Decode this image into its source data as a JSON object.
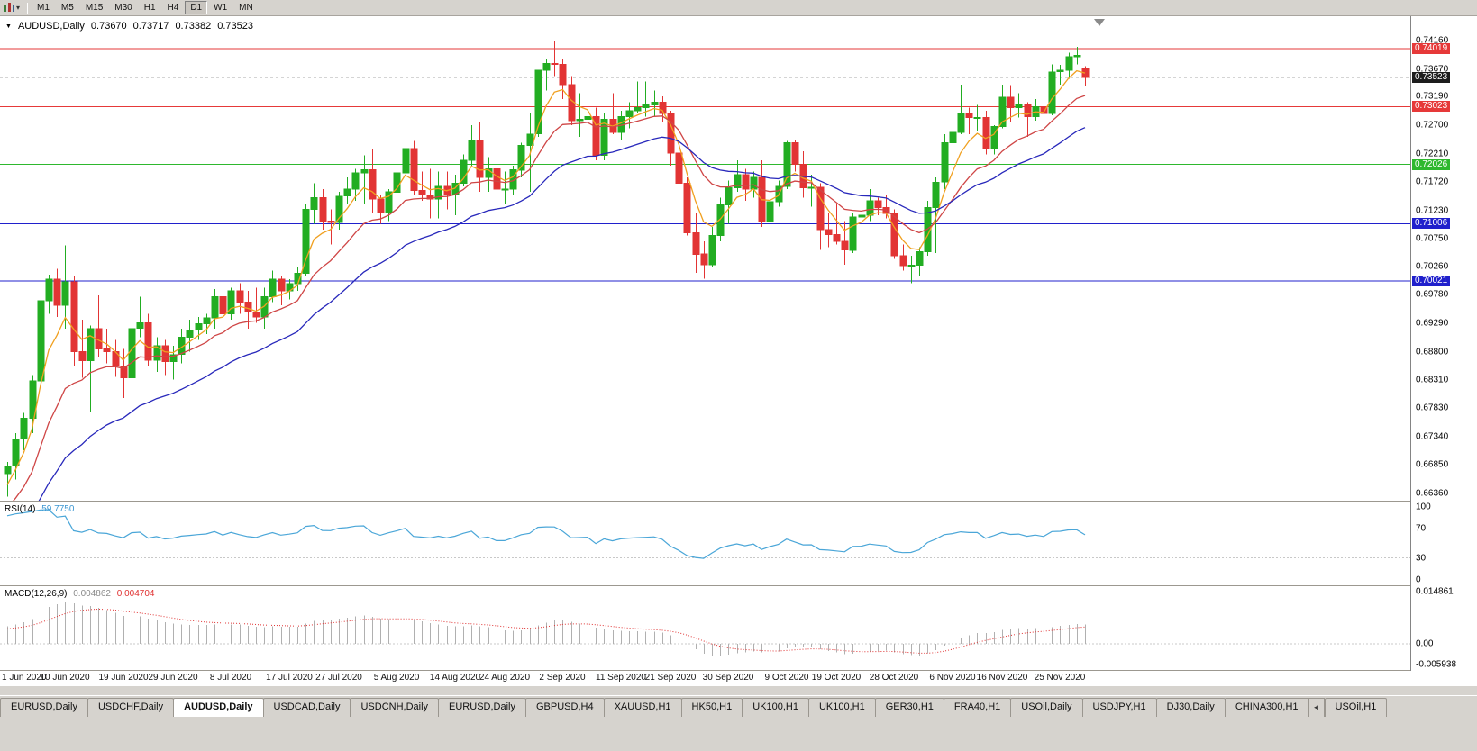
{
  "colors": {
    "window_bg": "#d6d3ce",
    "chart_bg": "#ffffff",
    "up": "#22ad22",
    "down": "#e23434",
    "ma_fast": "#f0a020",
    "ma_mid": "#cf4646",
    "ma_slow": "#2828bb",
    "rsi": "#4aa6d8",
    "macd_hist": "#b0b0b0",
    "macd_signal": "#e03232",
    "line_red": "#e63939",
    "line_green": "#2eb82e",
    "line_blue": "#2020cc",
    "current_tag_bg": "#1d1d1d",
    "current_line": "#aaaaaa"
  },
  "toolbar": {
    "caret": "▾",
    "timeframes": [
      "M1",
      "M5",
      "M15",
      "M30",
      "H1",
      "H4",
      "D1",
      "W1",
      "MN"
    ],
    "active": "D1"
  },
  "chart_header": {
    "menu_marker": "▼",
    "symbol": "AUDUSD,Daily",
    "open": "0.73670",
    "high": "0.73717",
    "low": "0.73382",
    "close": "0.73523"
  },
  "chart_data": {
    "type": "candlestick",
    "symbol": "AUDUSD",
    "timeframe": "Daily",
    "price_range": {
      "top": 0.74578,
      "bottom": 0.66234
    },
    "axis_labels": [
      "0.74160",
      "0.73670",
      "0.73190",
      "0.72700",
      "0.72210",
      "0.71720",
      "0.71230",
      "0.70750",
      "0.70260",
      "0.69780",
      "0.69290",
      "0.68800",
      "0.68310",
      "0.67830",
      "0.67340",
      "0.66850",
      "0.66360"
    ],
    "hlines": [
      {
        "price": 0.74019,
        "label": "0.74019",
        "color": "red"
      },
      {
        "price": 0.73023,
        "label": "0.73023",
        "color": "red"
      },
      {
        "price": 0.72026,
        "label": "0.72026",
        "color": "green"
      },
      {
        "price": 0.71006,
        "label": "0.71006",
        "color": "blue"
      },
      {
        "price": 0.70021,
        "label": "0.70021",
        "color": "blue"
      }
    ],
    "current_price": {
      "price": 0.73523,
      "label": "0.73523"
    },
    "date_ticks": [
      {
        "label": "1 Jun 2020",
        "index": 0
      },
      {
        "label": "10 Jun 2020",
        "index": 7
      },
      {
        "label": "19 Jun 2020",
        "index": 14
      },
      {
        "label": "29 Jun 2020",
        "index": 20
      },
      {
        "label": "8 Jul 2020",
        "index": 27
      },
      {
        "label": "17 Jul 2020",
        "index": 34
      },
      {
        "label": "27 Jul 2020",
        "index": 40
      },
      {
        "label": "5 Aug 2020",
        "index": 47
      },
      {
        "label": "14 Aug 2020",
        "index": 54
      },
      {
        "label": "24 Aug 2020",
        "index": 60
      },
      {
        "label": "2 Sep 2020",
        "index": 67
      },
      {
        "label": "11 Sep 2020",
        "index": 74
      },
      {
        "label": "21 Sep 2020",
        "index": 80
      },
      {
        "label": "30 Sep 2020",
        "index": 87
      },
      {
        "label": "9 Oct 2020",
        "index": 94
      },
      {
        "label": "19 Oct 2020",
        "index": 100
      },
      {
        "label": "28 Oct 2020",
        "index": 107
      },
      {
        "label": "6 Nov 2020",
        "index": 114
      },
      {
        "label": "16 Nov 2020",
        "index": 120
      },
      {
        "label": "25 Nov 2020",
        "index": 127
      }
    ],
    "warmup_closes": [
      0.64,
      0.6412,
      0.6404,
      0.642,
      0.6435,
      0.6428,
      0.6445,
      0.6458,
      0.645,
      0.6468,
      0.648,
      0.6472,
      0.649,
      0.6502,
      0.6495,
      0.6512,
      0.652,
      0.6515,
      0.653,
      0.6542,
      0.6535,
      0.6552,
      0.656,
      0.6555,
      0.657,
      0.6582,
      0.6575,
      0.6592,
      0.66,
      0.6595,
      0.6612,
      0.663,
      0.6648,
      0.6662
    ],
    "candles": [
      [
        0.667,
        0.669,
        0.663,
        0.6683
      ],
      [
        0.6683,
        0.674,
        0.666,
        0.673
      ],
      [
        0.673,
        0.6775,
        0.671,
        0.6765
      ],
      [
        0.6765,
        0.684,
        0.674,
        0.683
      ],
      [
        0.683,
        0.699,
        0.68,
        0.6968
      ],
      [
        0.6968,
        0.7013,
        0.6945,
        0.7005
      ],
      [
        0.7005,
        0.7023,
        0.694,
        0.696
      ],
      [
        0.696,
        0.7063,
        0.692,
        0.7
      ],
      [
        0.7,
        0.701,
        0.6855,
        0.688
      ],
      [
        0.688,
        0.6935,
        0.6835,
        0.6865
      ],
      [
        0.6865,
        0.6925,
        0.6776,
        0.692
      ],
      [
        0.692,
        0.6977,
        0.687,
        0.6885
      ],
      [
        0.6885,
        0.692,
        0.686,
        0.688
      ],
      [
        0.688,
        0.69,
        0.6837,
        0.6855
      ],
      [
        0.6855,
        0.6885,
        0.68,
        0.6835
      ],
      [
        0.6835,
        0.6925,
        0.683,
        0.692
      ],
      [
        0.692,
        0.6975,
        0.6905,
        0.693
      ],
      [
        0.693,
        0.6945,
        0.6855,
        0.6865
      ],
      [
        0.6865,
        0.6905,
        0.6845,
        0.689
      ],
      [
        0.689,
        0.69,
        0.684,
        0.6863
      ],
      [
        0.6863,
        0.689,
        0.6832,
        0.6875
      ],
      [
        0.6875,
        0.692,
        0.686,
        0.6905
      ],
      [
        0.6905,
        0.6935,
        0.688,
        0.6917
      ],
      [
        0.6917,
        0.694,
        0.69,
        0.6928
      ],
      [
        0.6928,
        0.6945,
        0.691,
        0.6938
      ],
      [
        0.6938,
        0.6988,
        0.692,
        0.6975
      ],
      [
        0.6975,
        0.6998,
        0.6925,
        0.6945
      ],
      [
        0.6945,
        0.699,
        0.6935,
        0.6985
      ],
      [
        0.6985,
        0.6998,
        0.6945,
        0.6965
      ],
      [
        0.6965,
        0.6985,
        0.692,
        0.6948
      ],
      [
        0.6948,
        0.699,
        0.693,
        0.694
      ],
      [
        0.694,
        0.699,
        0.692,
        0.6975
      ],
      [
        0.6975,
        0.702,
        0.6965,
        0.7005
      ],
      [
        0.7005,
        0.701,
        0.696,
        0.6985
      ],
      [
        0.6985,
        0.7005,
        0.697,
        0.6997
      ],
      [
        0.6997,
        0.7025,
        0.6985,
        0.7015
      ],
      [
        0.7015,
        0.7135,
        0.701,
        0.7125
      ],
      [
        0.7125,
        0.717,
        0.71,
        0.7145
      ],
      [
        0.7145,
        0.716,
        0.709,
        0.7105
      ],
      [
        0.7105,
        0.7125,
        0.7065,
        0.7103
      ],
      [
        0.7103,
        0.7155,
        0.709,
        0.7148
      ],
      [
        0.7148,
        0.718,
        0.7135,
        0.716
      ],
      [
        0.716,
        0.7195,
        0.714,
        0.7188
      ],
      [
        0.7188,
        0.7218,
        0.7135,
        0.7193
      ],
      [
        0.7193,
        0.7228,
        0.712,
        0.7143
      ],
      [
        0.7143,
        0.715,
        0.71,
        0.712
      ],
      [
        0.712,
        0.716,
        0.7105,
        0.7155
      ],
      [
        0.7155,
        0.72,
        0.7145,
        0.7188
      ],
      [
        0.7188,
        0.724,
        0.718,
        0.723
      ],
      [
        0.723,
        0.7243,
        0.715,
        0.7158
      ],
      [
        0.7158,
        0.719,
        0.714,
        0.715
      ],
      [
        0.715,
        0.7195,
        0.711,
        0.7143
      ],
      [
        0.7143,
        0.719,
        0.711,
        0.7165
      ],
      [
        0.7165,
        0.719,
        0.7125,
        0.715
      ],
      [
        0.715,
        0.7185,
        0.7115,
        0.717
      ],
      [
        0.717,
        0.722,
        0.7165,
        0.721
      ],
      [
        0.721,
        0.727,
        0.72,
        0.7243
      ],
      [
        0.7243,
        0.7275,
        0.7155,
        0.718
      ],
      [
        0.718,
        0.7215,
        0.7155,
        0.7195
      ],
      [
        0.7195,
        0.72,
        0.7135,
        0.716
      ],
      [
        0.716,
        0.719,
        0.7135,
        0.716
      ],
      [
        0.716,
        0.72,
        0.715,
        0.7193
      ],
      [
        0.7193,
        0.724,
        0.718,
        0.7235
      ],
      [
        0.7235,
        0.729,
        0.7155,
        0.7255
      ],
      [
        0.7255,
        0.7365,
        0.725,
        0.7365
      ],
      [
        0.7365,
        0.7385,
        0.733,
        0.7376
      ],
      [
        0.7376,
        0.7414,
        0.7355,
        0.7375
      ],
      [
        0.7375,
        0.7385,
        0.7315,
        0.734
      ],
      [
        0.734,
        0.7355,
        0.727,
        0.7278
      ],
      [
        0.7278,
        0.7325,
        0.725,
        0.728
      ],
      [
        0.728,
        0.73,
        0.725,
        0.7285
      ],
      [
        0.7285,
        0.73,
        0.721,
        0.7218
      ],
      [
        0.7218,
        0.729,
        0.721,
        0.728
      ],
      [
        0.728,
        0.7325,
        0.7255,
        0.7258
      ],
      [
        0.7258,
        0.7295,
        0.7245,
        0.7285
      ],
      [
        0.7285,
        0.731,
        0.7265,
        0.7295
      ],
      [
        0.7295,
        0.7345,
        0.729,
        0.73
      ],
      [
        0.73,
        0.7345,
        0.7285,
        0.7305
      ],
      [
        0.7305,
        0.733,
        0.7285,
        0.731
      ],
      [
        0.731,
        0.732,
        0.7275,
        0.729
      ],
      [
        0.729,
        0.7295,
        0.72,
        0.7222
      ],
      [
        0.7222,
        0.724,
        0.7155,
        0.717
      ],
      [
        0.717,
        0.718,
        0.708,
        0.7085
      ],
      [
        0.7085,
        0.7118,
        0.7016,
        0.7048
      ],
      [
        0.7048,
        0.707,
        0.7006,
        0.703
      ],
      [
        0.703,
        0.7095,
        0.7025,
        0.708
      ],
      [
        0.708,
        0.7145,
        0.707,
        0.7133
      ],
      [
        0.7133,
        0.7175,
        0.71,
        0.7162
      ],
      [
        0.7162,
        0.721,
        0.7155,
        0.7185
      ],
      [
        0.7185,
        0.7195,
        0.714,
        0.716
      ],
      [
        0.716,
        0.719,
        0.7145,
        0.718
      ],
      [
        0.718,
        0.721,
        0.7095,
        0.7105
      ],
      [
        0.7105,
        0.7145,
        0.7095,
        0.7138
      ],
      [
        0.7138,
        0.7175,
        0.713,
        0.7165
      ],
      [
        0.7165,
        0.7243,
        0.716,
        0.724
      ],
      [
        0.724,
        0.7245,
        0.719,
        0.7203
      ],
      [
        0.7203,
        0.7225,
        0.7145,
        0.7162
      ],
      [
        0.7162,
        0.7185,
        0.713,
        0.7163
      ],
      [
        0.7163,
        0.717,
        0.7055,
        0.709
      ],
      [
        0.709,
        0.712,
        0.706,
        0.7082
      ],
      [
        0.7082,
        0.7135,
        0.7065,
        0.707
      ],
      [
        0.707,
        0.7105,
        0.703,
        0.7055
      ],
      [
        0.7055,
        0.712,
        0.705,
        0.7112
      ],
      [
        0.7112,
        0.7138,
        0.7085,
        0.7115
      ],
      [
        0.7115,
        0.716,
        0.7105,
        0.714
      ],
      [
        0.714,
        0.7145,
        0.7115,
        0.7128
      ],
      [
        0.7128,
        0.715,
        0.711,
        0.7118
      ],
      [
        0.7118,
        0.7125,
        0.704,
        0.7045
      ],
      [
        0.7045,
        0.7065,
        0.702,
        0.7028
      ],
      [
        0.7028,
        0.7045,
        0.6998,
        0.7029
      ],
      [
        0.7029,
        0.706,
        0.701,
        0.7052
      ],
      [
        0.7052,
        0.714,
        0.7045,
        0.7128
      ],
      [
        0.7128,
        0.718,
        0.705,
        0.7172
      ],
      [
        0.7172,
        0.7255,
        0.716,
        0.724
      ],
      [
        0.724,
        0.727,
        0.721,
        0.7258
      ],
      [
        0.7258,
        0.734,
        0.7255,
        0.729
      ],
      [
        0.729,
        0.73,
        0.7255,
        0.7283
      ],
      [
        0.7283,
        0.7305,
        0.726,
        0.7283
      ],
      [
        0.7283,
        0.7295,
        0.722,
        0.723
      ],
      [
        0.723,
        0.727,
        0.722,
        0.7268
      ],
      [
        0.7268,
        0.734,
        0.7265,
        0.7318
      ],
      [
        0.7318,
        0.7339,
        0.7275,
        0.73
      ],
      [
        0.73,
        0.7325,
        0.7283,
        0.7305
      ],
      [
        0.7305,
        0.731,
        0.725,
        0.7285
      ],
      [
        0.7285,
        0.7315,
        0.7278,
        0.7302
      ],
      [
        0.7302,
        0.734,
        0.7285,
        0.729
      ],
      [
        0.729,
        0.7375,
        0.7287,
        0.7362
      ],
      [
        0.7362,
        0.7374,
        0.734,
        0.7365
      ],
      [
        0.7365,
        0.7395,
        0.735,
        0.7388
      ],
      [
        0.7388,
        0.7405,
        0.7375,
        0.739
      ],
      [
        0.7367,
        0.73717,
        0.73382,
        0.73523
      ]
    ],
    "indicators": {
      "ma": [
        {
          "name": "fast",
          "period": 5,
          "color_key": "ma_fast"
        },
        {
          "name": "mid",
          "period": 13,
          "color_key": "ma_mid"
        },
        {
          "name": "slow",
          "period": 28,
          "color_key": "ma_slow"
        }
      ],
      "rsi": {
        "label": "RSI(14)",
        "value": "59.7750",
        "period": 14,
        "levels": [
          "100",
          "70",
          "30",
          "0"
        ],
        "dotted_levels": [
          70,
          30
        ]
      },
      "macd": {
        "label": "MACD(12,26,9)",
        "main_value": "0.004862",
        "signal_value": "0.004704",
        "fast": 12,
        "slow": 26,
        "signal_period": 9,
        "axis_labels": [
          "0.014861",
          "0.00",
          "-0.005938"
        ]
      }
    }
  },
  "tabs": {
    "items": [
      "EURUSD,Daily",
      "USDCHF,Daily",
      "AUDUSD,Daily",
      "USDCAD,Daily",
      "USDCNH,Daily",
      "EURUSD,Daily",
      "GBPUSD,H4",
      "XAUUSD,H1",
      "HK50,H1",
      "UK100,H1",
      "UK100,H1",
      "GER30,H1",
      "FRA40,H1",
      "USOil,Daily",
      "USDJPY,H1",
      "DJ30,Daily",
      "CHINA300,H1"
    ],
    "active_index": 2,
    "scroll_left_glyph": "◄",
    "clipped_item": "USOil,H1"
  }
}
